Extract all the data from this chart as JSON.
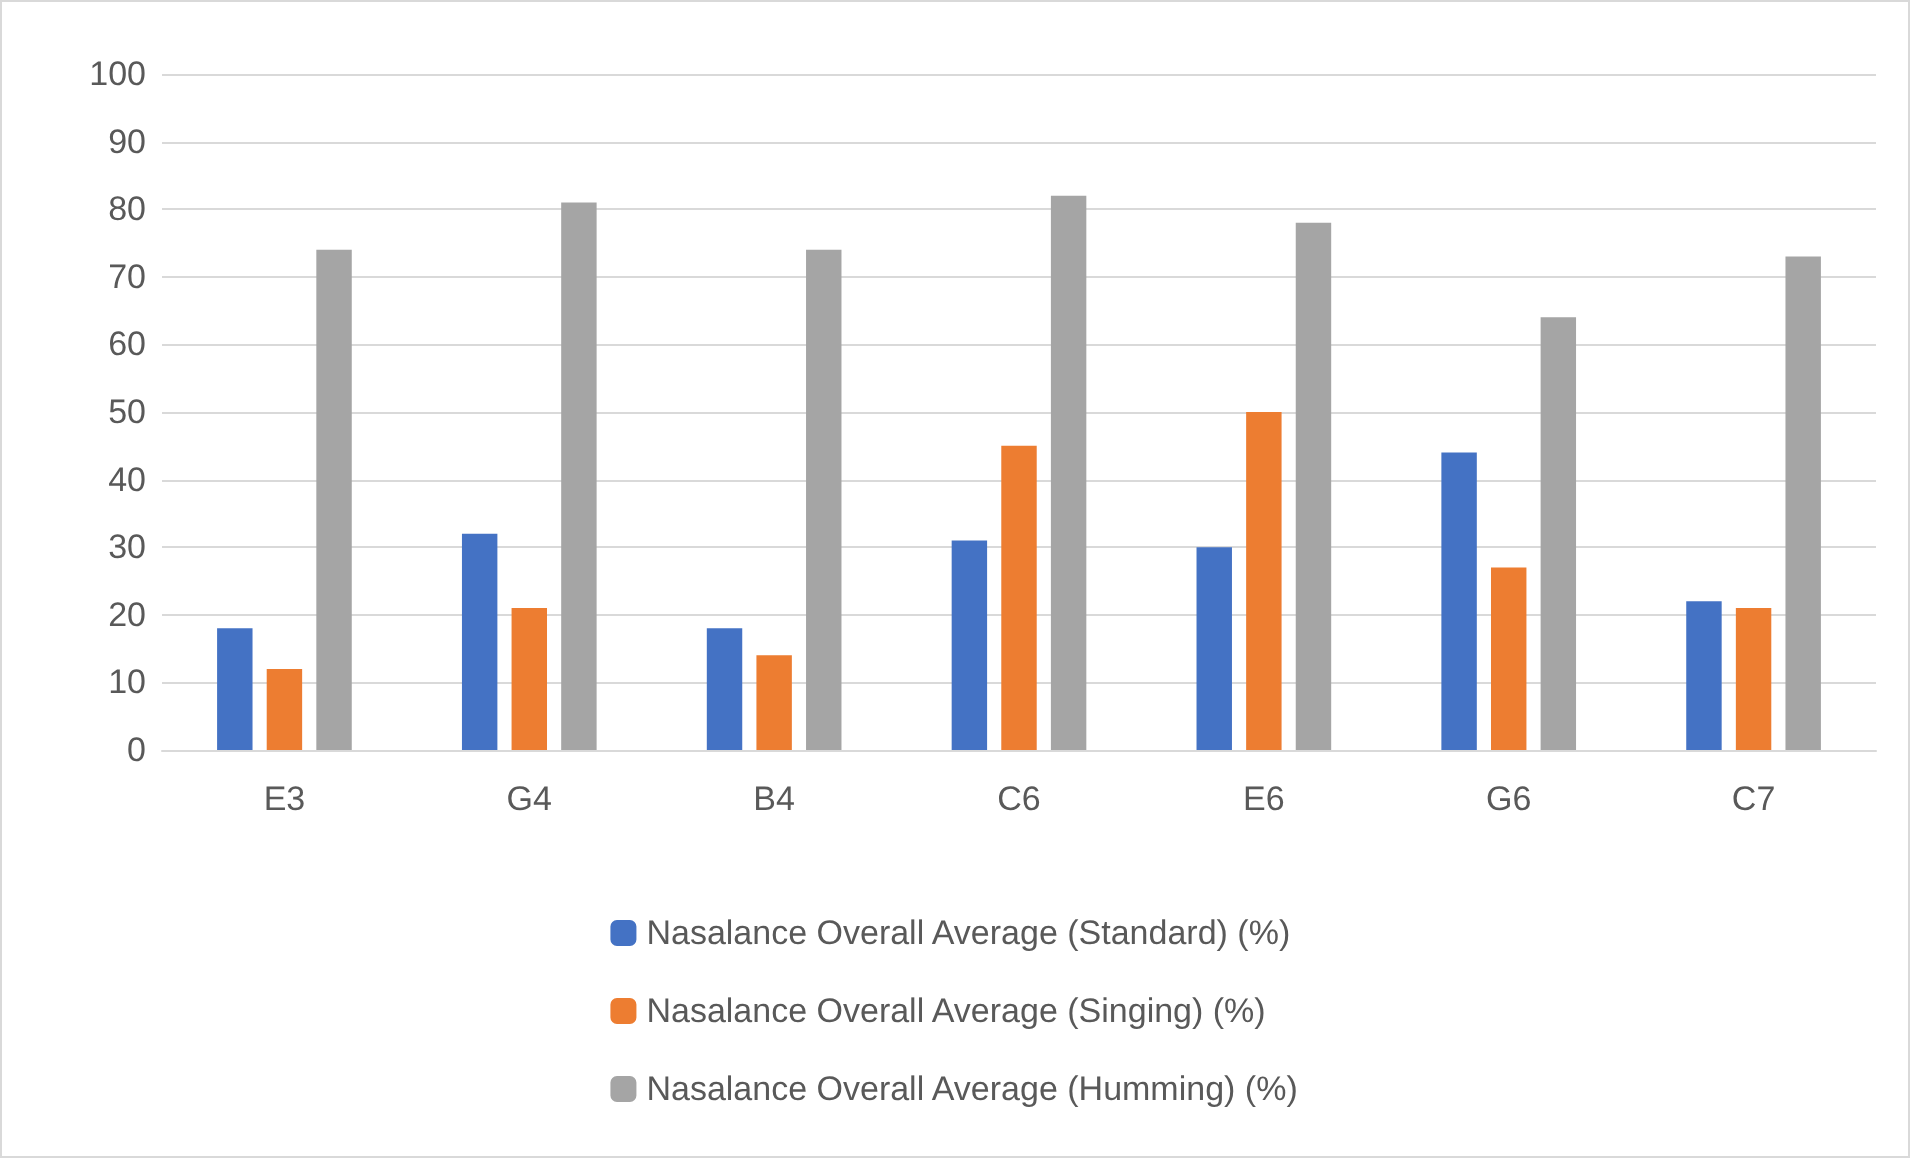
{
  "chart_data": {
    "type": "bar",
    "categories": [
      "E3",
      "G4",
      "B4",
      "C6",
      "E6",
      "G6",
      "C7"
    ],
    "series": [
      {
        "name": "Nasalance Overall Average (Standard) (%)",
        "color": "#4472c4",
        "values": [
          18,
          32,
          18,
          31,
          30,
          44,
          22
        ]
      },
      {
        "name": "Nasalance Overall Average (Singing) (%)",
        "color": "#ed7d31",
        "values": [
          12,
          21,
          14,
          45,
          50,
          27,
          21
        ]
      },
      {
        "name": "Nasalance Overall Average (Humming) (%)",
        "color": "#a5a5a5",
        "values": [
          74,
          81,
          74,
          82,
          78,
          64,
          73
        ]
      }
    ],
    "ylim": [
      0,
      100
    ],
    "yticks": [
      0,
      10,
      20,
      30,
      40,
      50,
      60,
      70,
      80,
      90,
      100
    ],
    "grid": "y",
    "legend": "bottom"
  }
}
